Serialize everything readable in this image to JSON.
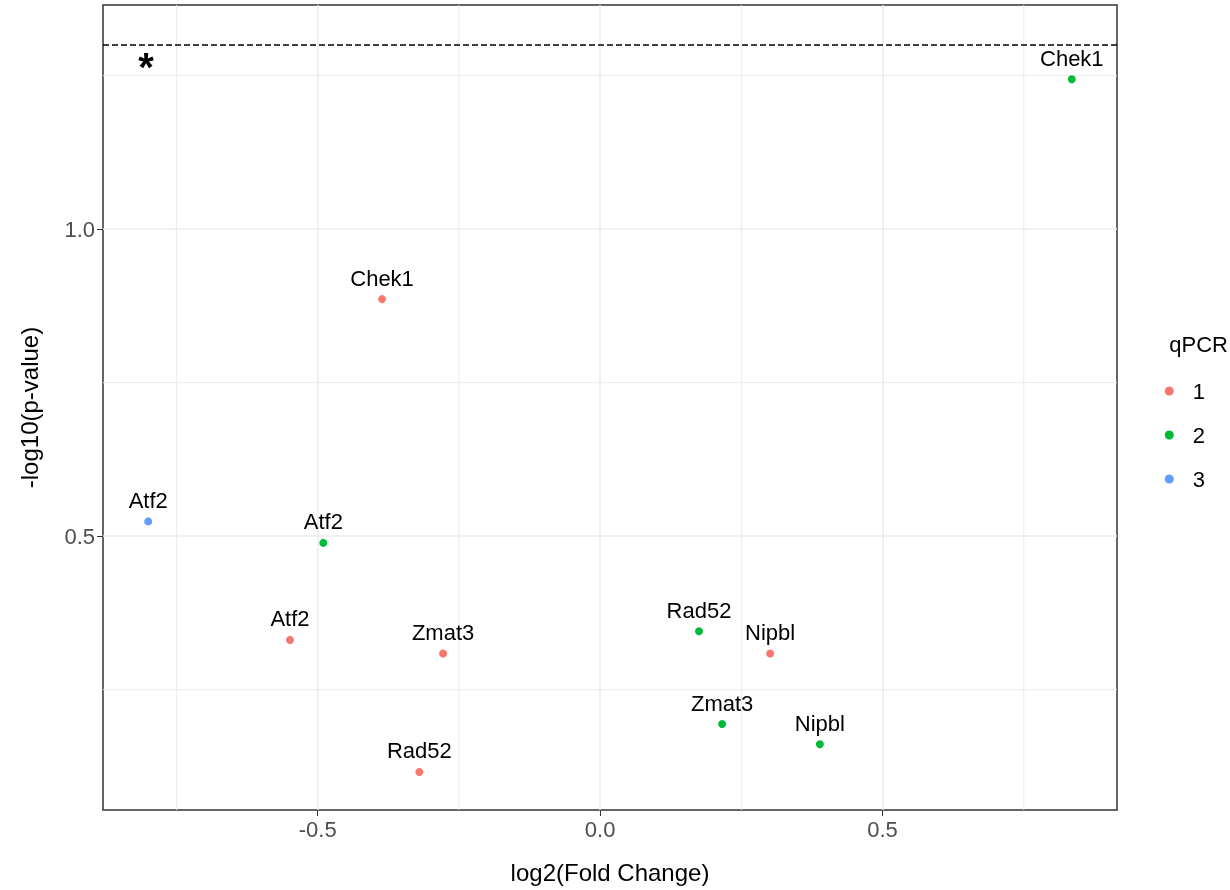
{
  "chart_data": {
    "type": "scatter",
    "xlabel": "log2(Fold Change)",
    "ylabel": "-log10(p-value)",
    "legend_title": "qPCR",
    "legend": "right",
    "grid": true,
    "marker": "circle",
    "xlim": [
      -0.88,
      0.915
    ],
    "xticks": [
      {
        "value": -0.5,
        "label": "-0.5"
      },
      {
        "value": 0,
        "label": "0.0"
      },
      {
        "value": 0.5,
        "label": "0.5"
      }
    ],
    "ylim": [
      0.054,
      1.365
    ],
    "yticks": [
      {
        "value": 0.5,
        "label": "0.5"
      },
      {
        "value": 1,
        "label": "1.0"
      }
    ],
    "ref_lines": [
      {
        "axis": "y",
        "value": 1.301,
        "line_style": "dashed",
        "color": "#000000"
      }
    ],
    "annotations": [
      "*"
    ],
    "series": [
      {
        "name": "1",
        "color": "#f8766d",
        "x": [
          -0.386,
          -0.549,
          -0.278,
          -0.32,
          0.301
        ],
        "values": [
          0.886,
          0.331,
          0.309,
          0.116,
          0.309
        ],
        "value_labels": [
          "Chek1",
          "Atf2",
          "Zmat3",
          "Rad52",
          "Nipbl"
        ]
      },
      {
        "name": "2",
        "color": "#00ba38",
        "x": [
          0.835,
          -0.49,
          0.175,
          0.216,
          0.389
        ],
        "values": [
          1.244,
          0.489,
          0.345,
          0.194,
          0.161
        ],
        "value_labels": [
          "Chek1",
          "Atf2",
          "Rad52",
          "Zmat3",
          "Nipbl"
        ]
      },
      {
        "name": "3",
        "color": "#619cff",
        "x": [
          -0.8
        ],
        "values": [
          0.524
        ],
        "value_labels": [
          "Atf2"
        ]
      }
    ]
  }
}
